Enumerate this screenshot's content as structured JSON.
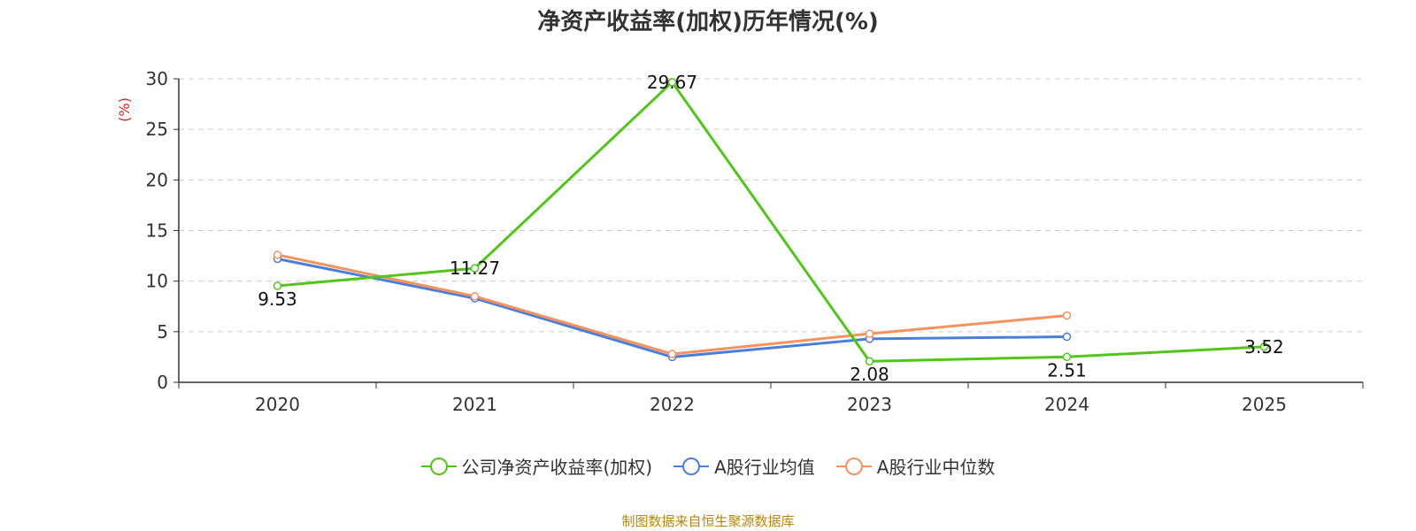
{
  "chart_data": {
    "type": "line",
    "title": "净资产收益率(加权)历年情况(%)",
    "ylabel": "(%)",
    "xlabel": "",
    "categories": [
      "2020",
      "2021",
      "2022",
      "2023",
      "2024",
      "2025"
    ],
    "ylim": [
      0,
      30
    ],
    "yticks": [
      0,
      5,
      10,
      15,
      20,
      25,
      30
    ],
    "grid": true,
    "legend_position": "bottom",
    "series": [
      {
        "name": "公司净资产收益率(加权)",
        "color": "#52c41a",
        "values": [
          9.53,
          11.27,
          29.67,
          2.08,
          2.51,
          3.52
        ],
        "labels": [
          "9.53",
          "11.27",
          "29.67",
          "2.08",
          "2.51",
          "3.52"
        ]
      },
      {
        "name": "A股行业均值",
        "color": "#4a7fd9",
        "values": [
          12.2,
          8.3,
          2.5,
          4.3,
          4.5,
          null
        ]
      },
      {
        "name": "A股行业中位数",
        "color": "#f5925e",
        "values": [
          12.6,
          8.5,
          2.8,
          4.8,
          6.6,
          null
        ]
      }
    ]
  },
  "source_note": "制图数据来自恒生聚源数据库"
}
